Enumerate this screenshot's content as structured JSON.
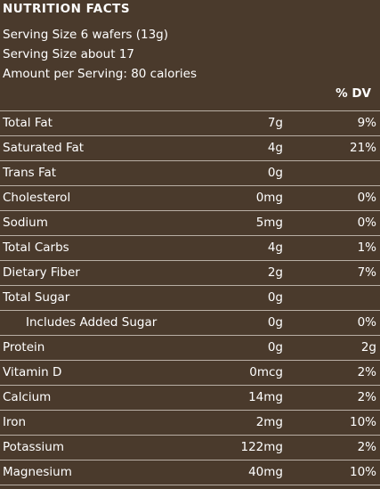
{
  "header": {
    "title": "NUTRITION FACTS",
    "lines": [
      "Serving Size 6 wafers (13g)",
      "Serving Size about 17",
      "Amount per Serving: 80 calories"
    ],
    "dv_heading": "% DV"
  },
  "table": {
    "rows": [
      {
        "name": "Total Fat",
        "amount": "7g",
        "dv": "9%"
      },
      {
        "name": "Saturated Fat",
        "amount": "4g",
        "dv": "21%"
      },
      {
        "name": "Trans Fat",
        "amount": "0g"
      },
      {
        "name": "Cholesterol",
        "amount": "0mg",
        "dv": "0%"
      },
      {
        "name": "Sodium",
        "amount": "5mg",
        "dv": "0%"
      },
      {
        "name": "Total Carbs",
        "amount": "4g",
        "dv": "1%"
      },
      {
        "name": "Dietary Fiber",
        "amount": "2g",
        "dv": "7%"
      },
      {
        "name": "Total Sugar",
        "amount": "0g"
      },
      {
        "name": "Includes Added Sugar",
        "amount": "0g",
        "dv": "0%"
      },
      {
        "name": "Protein",
        "amount": "0g",
        "dv": "2g"
      },
      {
        "name": "Vitamin D",
        "amount": "0mcg",
        "dv": "2%"
      },
      {
        "name": "Calcium",
        "amount": "14mg",
        "dv": "2%"
      },
      {
        "name": "Iron",
        "amount": "2mg",
        "dv": "10%"
      },
      {
        "name": "Potassium",
        "amount": "122mg",
        "dv": "2%"
      },
      {
        "name": "Magnesium",
        "amount": "40mg",
        "dv": "10%"
      }
    ]
  }
}
